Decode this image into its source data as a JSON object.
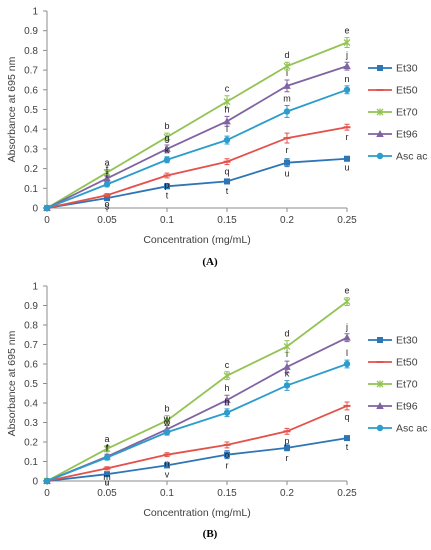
{
  "chart_data": [
    {
      "type": "line",
      "panel_label": "(A)",
      "xlabel": "Concentration (mg/mL)",
      "ylabel": "Absorbance at 695 nm",
      "x": [
        0,
        0.05,
        0.1,
        0.15,
        0.2,
        0.25
      ],
      "x_tick_labels": [
        "0",
        "0.05",
        "0.1",
        "0.15",
        "0.2",
        "0.25"
      ],
      "ylim": [
        0,
        1
      ],
      "y_tick_labels": [
        "0",
        "0.1",
        "0.2",
        "0.3",
        "0.4",
        "0.5",
        "0.6",
        "0.7",
        "0.8",
        "0.9",
        "1"
      ],
      "grid": false,
      "legend_position": "right",
      "series": [
        {
          "name": "Et30",
          "color": "#2e75b6",
          "marker": "square",
          "values": [
            0,
            0.05,
            0.11,
            0.135,
            0.23,
            0.25
          ],
          "errors": [
            0,
            0.008,
            0.01,
            0.012,
            0.02,
            0.01
          ],
          "labels": [
            "",
            "s",
            "t",
            "t",
            "u",
            "u"
          ]
        },
        {
          "name": "Et50",
          "color": "#e4504a",
          "marker": "dash",
          "values": [
            0,
            0.065,
            0.165,
            0.235,
            0.355,
            0.41
          ],
          "errors": [
            0,
            0.008,
            0.012,
            0.015,
            0.025,
            0.015
          ],
          "labels": [
            "",
            "o",
            "p",
            "q",
            "r",
            "r"
          ]
        },
        {
          "name": "Et70",
          "color": "#92c353",
          "marker": "x",
          "values": [
            0,
            0.18,
            0.36,
            0.54,
            0.72,
            0.84
          ],
          "errors": [
            0,
            0.015,
            0.02,
            0.03,
            0.02,
            0.025
          ],
          "labels": [
            "",
            "a",
            "b",
            "c",
            "d",
            "e"
          ]
        },
        {
          "name": "Et96",
          "color": "#8064a2",
          "marker": "triangle",
          "values": [
            0,
            0.15,
            0.3,
            0.44,
            0.62,
            0.72
          ],
          "errors": [
            0,
            0.012,
            0.02,
            0.025,
            0.03,
            0.02
          ],
          "labels": [
            "",
            "f",
            "g",
            "h",
            "i",
            "j"
          ]
        },
        {
          "name": "Asc ac",
          "color": "#2c9ccc",
          "marker": "circle",
          "values": [
            0,
            0.12,
            0.245,
            0.345,
            0.49,
            0.6
          ],
          "errors": [
            0,
            0.012,
            0.015,
            0.02,
            0.03,
            0.02
          ],
          "labels": [
            "",
            "f",
            "k",
            "l",
            "m",
            "n"
          ]
        }
      ]
    },
    {
      "type": "line",
      "panel_label": "(B)",
      "xlabel": "Concentration (mg/mL)",
      "ylabel": "Absorbance at 695 nm",
      "x": [
        0,
        0.05,
        0.1,
        0.15,
        0.2,
        0.25
      ],
      "x_tick_labels": [
        "0",
        "0.05",
        "0.1",
        "0.15",
        "0.2",
        "0.25"
      ],
      "ylim": [
        0,
        1
      ],
      "y_tick_labels": [
        "0",
        "0.1",
        "0.2",
        "0.3",
        "0.4",
        "0.5",
        "0.6",
        "0.7",
        "0.8",
        "0.9",
        "1"
      ],
      "grid": false,
      "legend_position": "right",
      "series": [
        {
          "name": "Et30",
          "color": "#2e75b6",
          "marker": "square",
          "values": [
            0,
            0.035,
            0.08,
            0.135,
            0.17,
            0.22
          ],
          "errors": [
            0,
            0.008,
            0.01,
            0.02,
            0.015,
            0.01
          ],
          "labels": [
            "",
            "u",
            "v",
            "r",
            "r",
            "t"
          ]
        },
        {
          "name": "Et50",
          "color": "#e4504a",
          "marker": "dash",
          "values": [
            0,
            0.065,
            0.135,
            0.185,
            0.255,
            0.385
          ],
          "errors": [
            0,
            0.008,
            0.01,
            0.015,
            0.015,
            0.02
          ],
          "labels": [
            "",
            "m",
            "n",
            "o",
            "p",
            "q"
          ]
        },
        {
          "name": "Et70",
          "color": "#92c353",
          "marker": "x",
          "values": [
            0,
            0.165,
            0.31,
            0.54,
            0.69,
            0.92
          ],
          "errors": [
            0,
            0.015,
            0.025,
            0.02,
            0.03,
            0.02
          ],
          "labels": [
            "",
            "a",
            "b",
            "c",
            "d",
            "e"
          ]
        },
        {
          "name": "Et96",
          "color": "#8064a2",
          "marker": "triangle",
          "values": [
            0,
            0.125,
            0.265,
            0.415,
            0.585,
            0.735
          ],
          "errors": [
            0,
            0.012,
            0.02,
            0.025,
            0.03,
            0.02
          ],
          "labels": [
            "",
            "f",
            "w",
            "h",
            "i",
            "j"
          ]
        },
        {
          "name": "Asc ac",
          "color": "#2c9ccc",
          "marker": "circle",
          "values": [
            0,
            0.12,
            0.25,
            0.35,
            0.49,
            0.6
          ],
          "errors": [
            0,
            0.012,
            0.015,
            0.02,
            0.025,
            0.02
          ],
          "labels": [
            "",
            "f",
            "w",
            "h",
            "k",
            "l"
          ]
        }
      ]
    }
  ]
}
